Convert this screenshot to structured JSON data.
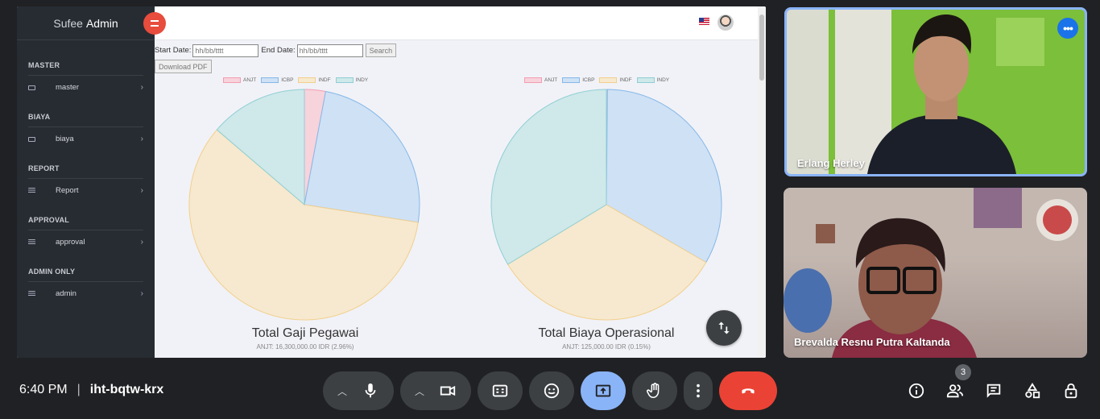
{
  "sidebar": {
    "brand_prefix": "Sufee",
    "brand_suffix": "Admin",
    "sections": [
      {
        "title": "MASTER",
        "item": "master"
      },
      {
        "title": "BIAYA",
        "item": "biaya"
      },
      {
        "title": "REPORT",
        "item": "Report"
      },
      {
        "title": "APPROVAL",
        "item": "approval"
      },
      {
        "title": "ADMIN ONLY",
        "item": "admin"
      }
    ]
  },
  "filter": {
    "start_label": "Start Date:",
    "start_placeholder": "hh/bb/tttt",
    "end_label": "End Date:",
    "end_placeholder": "hh/bb/tttt",
    "search_label": "Search",
    "download_label": "Download PDF"
  },
  "chart_data": [
    {
      "type": "pie",
      "title": "Total Gaji Pegawai",
      "subtitle": "ANJT: 16,300,000.00 IDR (2.96%)",
      "categories": [
        "ANJT",
        "ICBP",
        "INDF",
        "INDY"
      ],
      "values": [
        2.96,
        24.5,
        58.8,
        13.74
      ],
      "unit": "%"
    },
    {
      "type": "pie",
      "title": "Total Biaya Operasional",
      "subtitle": "ANJT: 125,000.00 IDR (0.15%)",
      "categories": [
        "ANJT",
        "ICBP",
        "INDF",
        "INDY"
      ],
      "values": [
        0.15,
        33.2,
        33.0,
        33.65
      ],
      "unit": "%"
    }
  ],
  "colors": {
    "fills": [
      "#f7d3dc",
      "#cfe1f5",
      "#f6e9cf",
      "#cfe8ea"
    ],
    "strokes": [
      "#f39db1",
      "#85b8e8",
      "#f2cf8c",
      "#8fcfd4"
    ]
  },
  "participants": [
    {
      "name": "Erlang Herley"
    },
    {
      "name": "Brevalda Resnu Putra Kaltanda"
    }
  ],
  "meeting": {
    "time": "6:40 PM",
    "separator": "|",
    "code": "iht-bqtw-krx",
    "participant_count": "3"
  }
}
